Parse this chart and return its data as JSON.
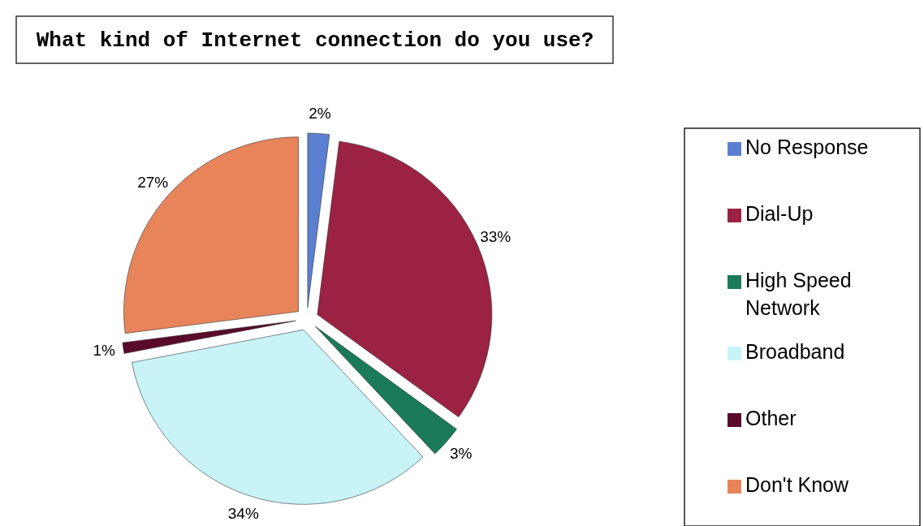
{
  "chart_data": {
    "type": "pie",
    "title": "What kind of Internet connection do you use?",
    "categories": [
      "No Response",
      "Dial-Up",
      "High Speed Network",
      "Broadband",
      "Other",
      "Don't Know"
    ],
    "values": [
      2,
      33,
      3,
      34,
      1,
      27
    ],
    "colors": [
      "#5b7fd0",
      "#9b2242",
      "#1a7a5a",
      "#c8f4f8",
      "#5a0a2a",
      "#e8845a"
    ],
    "value_labels": [
      "2%",
      "33%",
      "3%",
      "34%",
      "1%",
      "27%"
    ],
    "legend": "right"
  }
}
